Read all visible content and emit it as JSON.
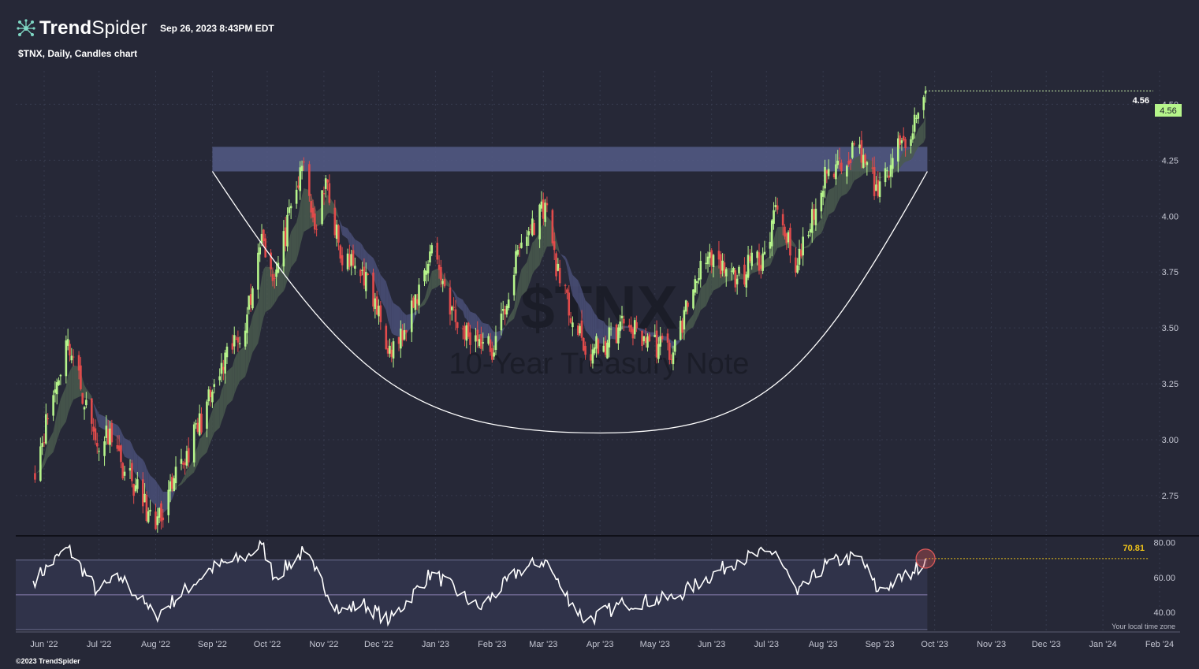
{
  "header": {
    "brand_bold": "Trend",
    "brand_light": "Spider",
    "timestamp": "Sep 26, 2023 8:43PM EDT",
    "chart_subtitle": "$TNX, Daily, Candles chart"
  },
  "watermark": {
    "symbol": "$TNX",
    "name": "10-Year Treasury Note"
  },
  "footer": {
    "copyright": "©2023 TrendSpider",
    "timezone_note": "Your local time zone"
  },
  "colors": {
    "background": "#262837",
    "up_candle": "#b6f58b",
    "down_candle": "#e24b4b",
    "resistance_zone": "#545a86",
    "cup_curve": "#ffffff",
    "price_label": "#b6f58b",
    "rsi_label": "#f0c419",
    "rsi_line": "#ffffff",
    "rsi_marker": "#e05a5a"
  },
  "chart_data": [
    {
      "type": "candlestick",
      "symbol": "$TNX",
      "timeframe": "Daily",
      "x_tick_labels": [
        "Jun '22",
        "Jul '22",
        "Aug '22",
        "Sep '22",
        "Oct '22",
        "Nov '22",
        "Dec '22",
        "Jan '23",
        "Feb '23",
        "Mar '23",
        "Apr '23",
        "May '23",
        "Jun '23",
        "Jul '23",
        "Aug '23",
        "Sep '23",
        "Oct '23",
        "Nov '23",
        "Dec '23",
        "Jan '24",
        "Feb '24"
      ],
      "y_tick_labels": [
        "2.75",
        "3.00",
        "3.25",
        "3.50",
        "3.75",
        "4.00",
        "4.25",
        "4.50"
      ],
      "ylim": [
        2.57,
        4.72
      ],
      "last_price": 4.56,
      "last_price_label": "4.56",
      "close_series": {
        "x": [
          "2022-05-26",
          "2022-06-14",
          "2022-06-30",
          "2022-07-07",
          "2022-07-13",
          "2022-07-28",
          "2022-08-01",
          "2022-08-10",
          "2022-08-31",
          "2022-09-20",
          "2022-09-28",
          "2022-10-05",
          "2022-10-21",
          "2022-10-27",
          "2022-11-03",
          "2022-11-10",
          "2022-11-22",
          "2022-12-07",
          "2022-12-16",
          "2022-12-30",
          "2023-01-13",
          "2023-01-25",
          "2023-02-02",
          "2023-02-16",
          "2023-03-02",
          "2023-03-10",
          "2023-03-24",
          "2023-04-03",
          "2023-04-14",
          "2023-04-28",
          "2023-05-11",
          "2023-05-26",
          "2023-06-15",
          "2023-06-30",
          "2023-07-06",
          "2023-07-18",
          "2023-08-03",
          "2023-08-21",
          "2023-08-31",
          "2023-09-08",
          "2023-09-19",
          "2023-09-26"
        ],
        "values": [
          2.85,
          3.45,
          2.97,
          3.05,
          2.9,
          2.68,
          2.6,
          2.78,
          3.19,
          3.56,
          3.92,
          3.72,
          4.24,
          3.94,
          4.15,
          3.81,
          3.76,
          3.42,
          3.48,
          3.87,
          3.5,
          3.45,
          3.39,
          3.86,
          4.06,
          3.7,
          3.38,
          3.42,
          3.52,
          3.44,
          3.39,
          3.8,
          3.72,
          3.84,
          4.05,
          3.78,
          4.19,
          4.32,
          4.09,
          4.26,
          4.37,
          4.56
        ]
      },
      "overlays": [
        {
          "type": "resistance_zone",
          "price_range": [
            4.2,
            4.31
          ],
          "x_range": [
            "2022-09-01",
            "2023-09-27"
          ]
        },
        {
          "type": "cup_curve",
          "start": [
            "2022-09-01",
            4.2
          ],
          "bottom": [
            "2023-04-01",
            3.03
          ],
          "end": [
            "2023-09-27",
            4.2
          ]
        }
      ]
    },
    {
      "type": "line",
      "indicator": "RSI",
      "y_tick_labels": [
        "40.00",
        "60.00",
        "80.00"
      ],
      "ylim": [
        30,
        83
      ],
      "band": [
        30,
        70
      ],
      "midline": 50,
      "last_value": 70.81,
      "last_value_label": "70.81",
      "series": {
        "x": [
          "2022-05-26",
          "2022-06-14",
          "2022-06-30",
          "2022-07-13",
          "2022-07-28",
          "2022-08-01",
          "2022-08-31",
          "2022-09-20",
          "2022-09-28",
          "2022-10-05",
          "2022-10-21",
          "2022-10-27",
          "2022-11-10",
          "2022-11-22",
          "2022-12-07",
          "2022-12-30",
          "2023-01-25",
          "2023-02-16",
          "2023-03-02",
          "2023-03-10",
          "2023-03-24",
          "2023-04-14",
          "2023-05-11",
          "2023-06-15",
          "2023-07-06",
          "2023-07-18",
          "2023-08-03",
          "2023-08-21",
          "2023-08-31",
          "2023-09-19",
          "2023-09-26"
        ],
        "values": [
          58,
          77,
          52,
          60,
          42,
          38,
          65,
          72,
          79,
          60,
          75,
          64,
          40,
          45,
          35,
          63,
          42,
          64,
          70,
          55,
          35,
          45,
          48,
          70,
          75,
          50,
          68,
          72,
          52,
          63,
          70.81
        ]
      }
    }
  ]
}
